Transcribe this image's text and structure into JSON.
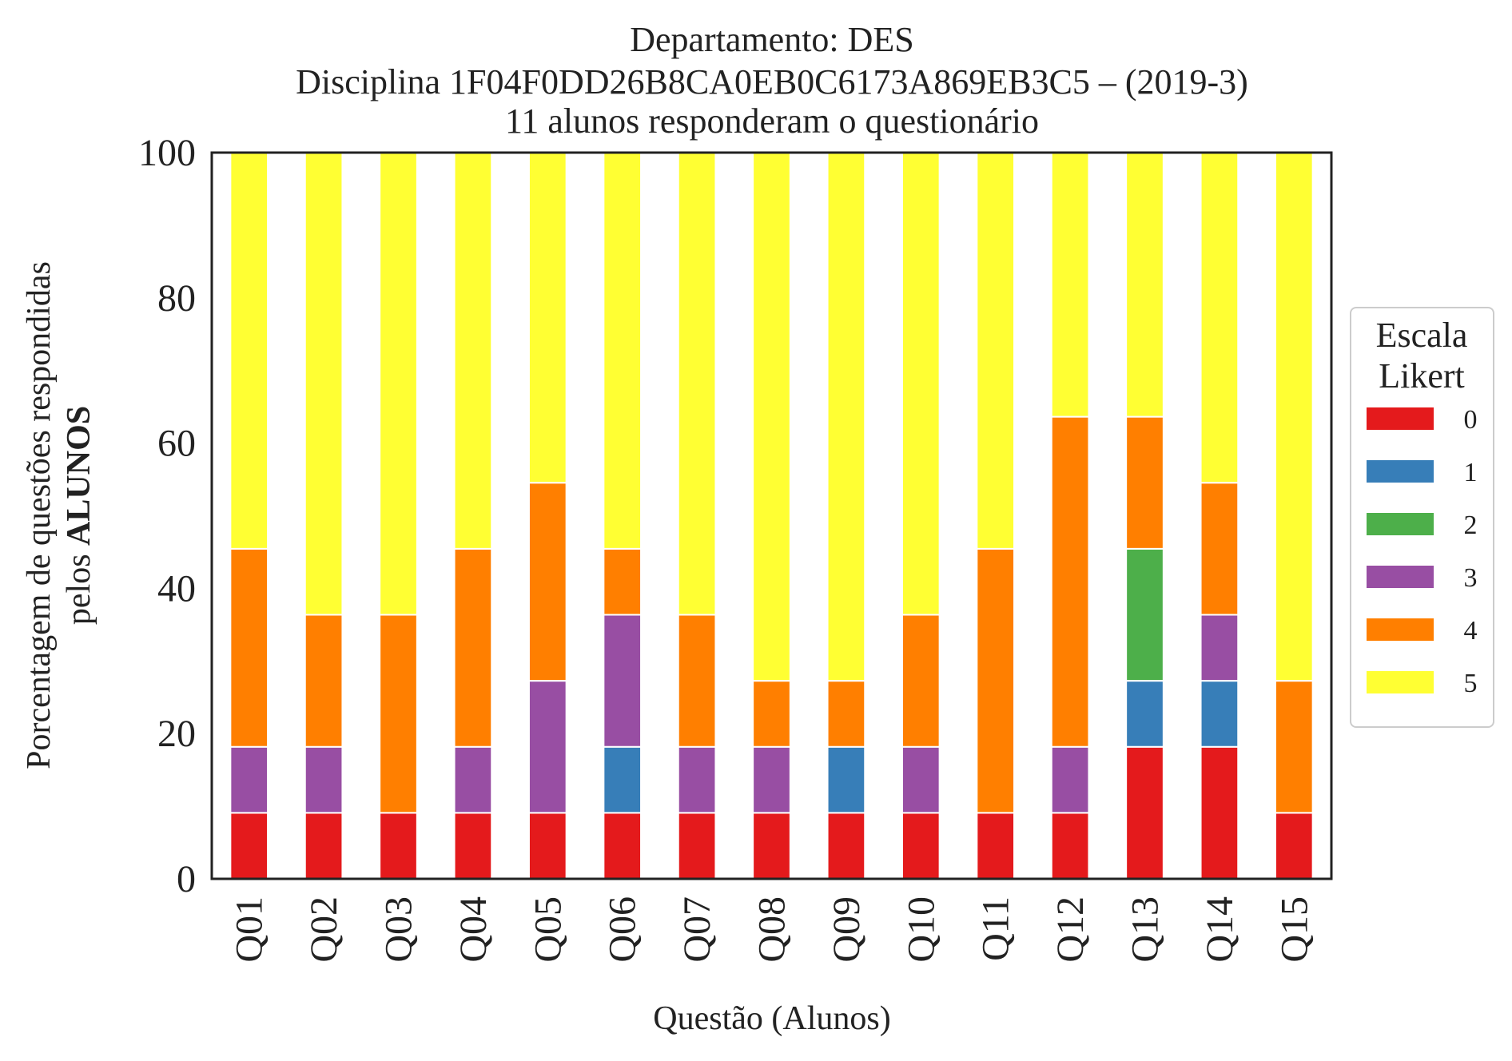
{
  "chart_data": {
    "type": "bar",
    "stacked": true,
    "title_lines": [
      "Departamento: DES",
      "Disciplina 1F04F0DD26B8CA0EB0C6173A869EB3C5 – (2019-3)",
      "11 alunos responderam o questionário"
    ],
    "xlabel": "Questão (Alunos)",
    "ylabel_line1": "Porcentagem de questões respondidas",
    "ylabel_line2_prefix": "pelos ",
    "ylabel_line2_bold": "ALUNOS",
    "ylim": [
      0,
      100
    ],
    "yticks": [
      "0",
      "20",
      "40",
      "60",
      "80",
      "100"
    ],
    "grid": false,
    "legend_position": "right-center",
    "legend_title_lines": [
      "Escala",
      "Likert"
    ],
    "categories": [
      "Q01",
      "Q02",
      "Q03",
      "Q04",
      "Q05",
      "Q06",
      "Q07",
      "Q08",
      "Q09",
      "Q10",
      "Q11",
      "Q12",
      "Q13",
      "Q14",
      "Q15"
    ],
    "series": [
      {
        "name": "0",
        "color": "#e41a1c",
        "values": [
          9.09,
          9.09,
          9.09,
          9.09,
          9.09,
          9.09,
          9.09,
          9.09,
          9.09,
          9.09,
          9.09,
          9.09,
          18.18,
          18.18,
          9.09
        ]
      },
      {
        "name": "1",
        "color": "#377eb8",
        "values": [
          0,
          0,
          0,
          0,
          0,
          9.09,
          0,
          0,
          9.09,
          0,
          0,
          0,
          9.09,
          9.09,
          0
        ]
      },
      {
        "name": "2",
        "color": "#4daf4a",
        "values": [
          0,
          0,
          0,
          0,
          0,
          0,
          0,
          0,
          0,
          0,
          0,
          0,
          18.18,
          0,
          0
        ]
      },
      {
        "name": "3",
        "color": "#984ea3",
        "values": [
          9.09,
          9.09,
          0,
          9.09,
          18.18,
          18.18,
          9.09,
          9.09,
          0,
          9.09,
          0,
          9.09,
          0,
          9.09,
          0
        ]
      },
      {
        "name": "4",
        "color": "#ff7f00",
        "values": [
          27.27,
          18.18,
          27.27,
          27.27,
          27.27,
          9.09,
          18.18,
          9.09,
          9.09,
          18.18,
          36.36,
          45.45,
          18.18,
          18.18,
          18.18
        ]
      },
      {
        "name": "5",
        "color": "#ffff33",
        "values": [
          54.55,
          63.64,
          63.64,
          54.55,
          45.45,
          54.55,
          63.64,
          72.73,
          72.73,
          63.64,
          54.55,
          36.36,
          36.36,
          45.45,
          72.73
        ]
      }
    ]
  }
}
